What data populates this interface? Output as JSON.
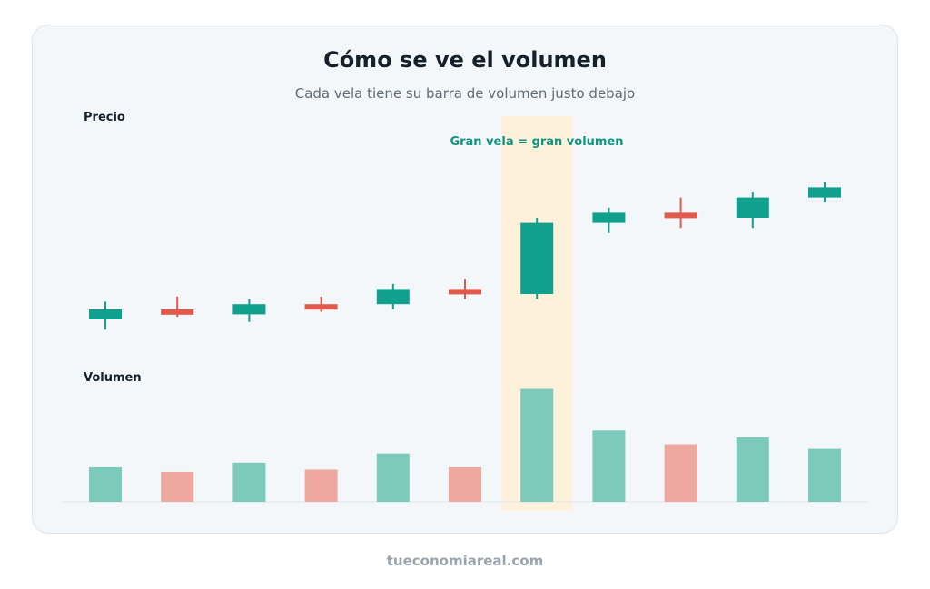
{
  "title": "Cómo se ve el volumen",
  "subtitle": "Cada vela tiene su barra de volumen justo debajo",
  "footer": "tueconomiareal.com",
  "colors": {
    "up": "#11a08e",
    "down": "#e05a4e",
    "volume_up": "#7ccab9",
    "volume_down": "#eea89f",
    "highlight": "#fdf1dc",
    "annotation": "#10937f"
  },
  "chart_data": {
    "type": "candlestick",
    "price_panel_label": "Precio",
    "volume_panel_label": "Volumen",
    "annotation": "Gran vela = gran volumen",
    "highlight_index": 6,
    "price_range": [
      0,
      100
    ],
    "volume_range": [
      0,
      100
    ],
    "candles": [
      {
        "open": 10,
        "close": 14,
        "high": 17,
        "low": 6,
        "volume": 30
      },
      {
        "open": 14,
        "close": 12,
        "high": 19,
        "low": 11,
        "volume": 26
      },
      {
        "open": 12,
        "close": 16,
        "high": 18,
        "low": 9,
        "volume": 34
      },
      {
        "open": 16,
        "close": 14,
        "high": 19,
        "low": 13,
        "volume": 28
      },
      {
        "open": 16,
        "close": 22,
        "high": 24,
        "low": 14,
        "volume": 42
      },
      {
        "open": 22,
        "close": 20,
        "high": 26,
        "low": 18,
        "volume": 30
      },
      {
        "open": 20,
        "close": 48,
        "high": 50,
        "low": 18,
        "volume": 98
      },
      {
        "open": 48,
        "close": 52,
        "high": 54,
        "low": 44,
        "volume": 62
      },
      {
        "open": 52,
        "close": 50,
        "high": 58,
        "low": 46,
        "volume": 50
      },
      {
        "open": 50,
        "close": 58,
        "high": 60,
        "low": 46,
        "volume": 56
      },
      {
        "open": 58,
        "close": 62,
        "high": 64,
        "low": 56,
        "volume": 46
      }
    ]
  }
}
